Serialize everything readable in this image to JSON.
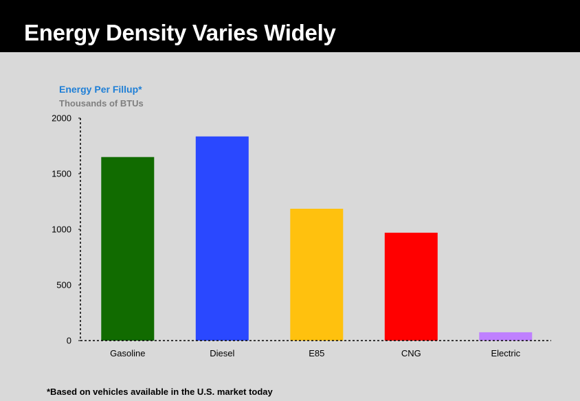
{
  "slide": {
    "title": "Energy Density Varies Widely",
    "footnote": "*Based on vehicles available in the U.S. market today"
  },
  "colors": {
    "title_bar": "#000000",
    "title_text": "#ffffff",
    "background": "#d9d9d9",
    "chart_title": "#1f7fd6",
    "chart_subtitle": "#7f7f7f"
  },
  "chart_data": {
    "type": "bar",
    "title": "Energy Per Fillup*",
    "subtitle": "Thousands of BTUs",
    "xlabel": "",
    "ylabel": "",
    "categories": [
      "Gasoline",
      "Diesel",
      "E85",
      "CNG",
      "Electric"
    ],
    "values": [
      1650,
      1835,
      1185,
      970,
      75
    ],
    "bar_colors": [
      "#116b00",
      "#2a48ff",
      "#ffc10e",
      "#ff0000",
      "#bf80ff"
    ],
    "ylim": [
      0,
      2000
    ],
    "yticks": [
      0,
      500,
      1000,
      1500,
      2000
    ],
    "grid": false,
    "legend": "none"
  }
}
